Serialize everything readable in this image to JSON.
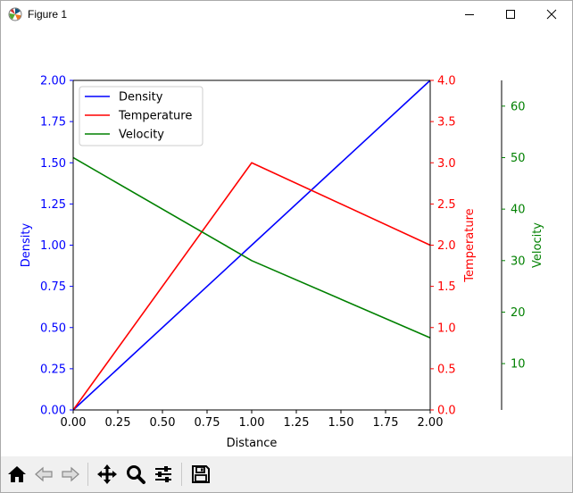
{
  "window": {
    "title": "Figure 1"
  },
  "colors": {
    "density": "#0000ff",
    "temperature": "#ff0000",
    "velocity": "#008000"
  },
  "toolbar": {
    "icons": [
      "home-icon",
      "back-arrow-icon",
      "forward-arrow-icon",
      "pan-icon",
      "zoom-icon",
      "configure-subplots-icon",
      "save-icon"
    ]
  },
  "chart_data": {
    "type": "line",
    "xlabel": "Distance",
    "xlim": [
      0,
      2
    ],
    "x_ticks": [
      "0.00",
      "0.25",
      "0.50",
      "0.75",
      "1.00",
      "1.25",
      "1.50",
      "1.75",
      "2.00"
    ],
    "axes": {
      "density": {
        "label": "Density",
        "ylim": [
          0,
          2
        ],
        "ticks": [
          "0.00",
          "0.25",
          "0.50",
          "0.75",
          "1.00",
          "1.25",
          "1.50",
          "1.75",
          "2.00"
        ]
      },
      "temperature": {
        "label": "Temperature",
        "ylim": [
          0,
          4
        ],
        "ticks": [
          "0.0",
          "0.5",
          "1.0",
          "1.5",
          "2.0",
          "2.5",
          "3.0",
          "3.5",
          "4.0"
        ]
      },
      "velocity": {
        "label": "Velocity",
        "ylim": [
          1,
          65
        ],
        "ticks": [
          "10",
          "20",
          "30",
          "40",
          "50",
          "60"
        ]
      }
    },
    "series": [
      {
        "name": "Density",
        "axis": "density",
        "x": [
          0,
          1,
          2
        ],
        "y": [
          0,
          1,
          2
        ]
      },
      {
        "name": "Temperature",
        "axis": "temperature",
        "x": [
          0,
          1,
          2
        ],
        "y": [
          0,
          3,
          2
        ]
      },
      {
        "name": "Velocity",
        "axis": "velocity",
        "x": [
          0,
          1,
          2
        ],
        "y": [
          50,
          30,
          15
        ]
      }
    ],
    "legend": [
      "Density",
      "Temperature",
      "Velocity"
    ],
    "legend_position": "upper-left",
    "grid": false
  }
}
